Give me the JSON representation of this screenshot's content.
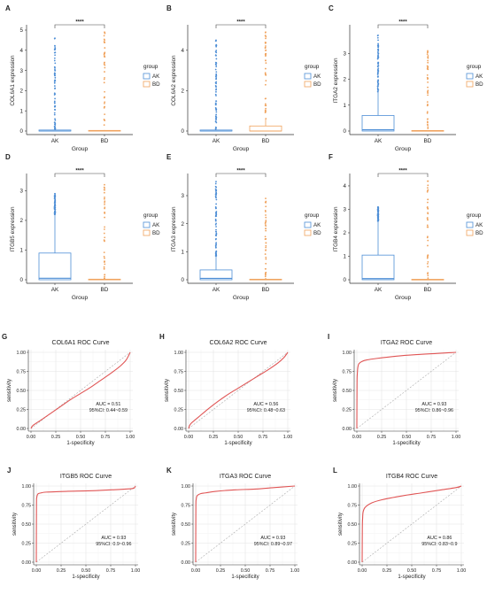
{
  "chart_data": [
    {
      "type": "box",
      "panel": "A",
      "ylabel": "COL6A1 expression",
      "xlabel": "Group",
      "categories": [
        "AK",
        "BD"
      ],
      "ylim": [
        0,
        5
      ],
      "yticks": [
        0,
        1,
        2,
        3,
        4,
        5
      ],
      "significance": "****",
      "legend": {
        "title": "group",
        "entries": [
          "AK",
          "BD"
        ],
        "placement": "right"
      },
      "series": [
        {
          "name": "AK",
          "color": "#4f8fd6",
          "q1": 0,
          "median": 0,
          "q3": 0.05,
          "whisker_low": 0,
          "whisker_high": 0.1,
          "outlier_max": 4.6
        },
        {
          "name": "BD",
          "color": "#f0a35e",
          "q1": 0,
          "median": 0,
          "q3": 0.03,
          "whisker_low": 0,
          "whisker_high": 0.05,
          "outlier_max": 4.9
        }
      ]
    },
    {
      "type": "box",
      "panel": "B",
      "ylabel": "COL6A2 expression",
      "xlabel": "Group",
      "categories": [
        "AK",
        "BD"
      ],
      "ylim": [
        0,
        5
      ],
      "yticks": [
        0,
        2,
        4
      ],
      "significance": "****",
      "legend": {
        "title": "group",
        "entries": [
          "AK",
          "BD"
        ],
        "placement": "right"
      },
      "series": [
        {
          "name": "AK",
          "color": "#4f8fd6",
          "q1": 0,
          "median": 0,
          "q3": 0.05,
          "whisker_low": 0,
          "whisker_high": 0.1,
          "outlier_max": 4.5
        },
        {
          "name": "BD",
          "color": "#f0a35e",
          "q1": 0,
          "median": 0,
          "q3": 0.25,
          "whisker_low": 0,
          "whisker_high": 0.6,
          "outlier_max": 4.9
        }
      ]
    },
    {
      "type": "box",
      "panel": "C",
      "ylabel": "ITGA2 expression",
      "xlabel": "Group",
      "categories": [
        "AK",
        "BD"
      ],
      "ylim": [
        0,
        3.9
      ],
      "yticks": [
        0,
        1,
        2,
        3
      ],
      "significance": "****",
      "legend": {
        "title": "group",
        "entries": [
          "AK",
          "BD"
        ],
        "placement": "right"
      },
      "series": [
        {
          "name": "AK",
          "color": "#4f8fd6",
          "q1": 0,
          "median": 0.05,
          "q3": 0.6,
          "whisker_low": 0,
          "whisker_high": 1.5,
          "outlier_max": 3.7
        },
        {
          "name": "BD",
          "color": "#f0a35e",
          "q1": 0,
          "median": 0,
          "q3": 0.02,
          "whisker_low": 0,
          "whisker_high": 0.03,
          "outlier_max": 3.1
        }
      ]
    },
    {
      "type": "box",
      "panel": "D",
      "ylabel": "ITGB5 expression",
      "xlabel": "Group",
      "categories": [
        "AK",
        "BD"
      ],
      "ylim": [
        0,
        3.4
      ],
      "yticks": [
        0,
        1,
        2,
        3
      ],
      "significance": "****",
      "legend": {
        "title": "group",
        "entries": [
          "AK",
          "BD"
        ],
        "placement": "right"
      },
      "series": [
        {
          "name": "AK",
          "color": "#4f8fd6",
          "q1": 0,
          "median": 0.05,
          "q3": 0.9,
          "whisker_low": 0,
          "whisker_high": 2.2,
          "outlier_max": 2.9
        },
        {
          "name": "BD",
          "color": "#f0a35e",
          "q1": 0,
          "median": 0,
          "q3": 0.02,
          "whisker_low": 0,
          "whisker_high": 0.03,
          "outlier_max": 3.2
        }
      ]
    },
    {
      "type": "box",
      "panel": "E",
      "ylabel": "ITGA3 expression",
      "xlabel": "Group",
      "categories": [
        "AK",
        "BD"
      ],
      "ylim": [
        0,
        3.6
      ],
      "yticks": [
        0,
        1,
        2,
        3
      ],
      "significance": "****",
      "legend": {
        "title": "group",
        "entries": [
          "AK",
          "BD"
        ],
        "placement": "right"
      },
      "series": [
        {
          "name": "AK",
          "color": "#4f8fd6",
          "q1": 0,
          "median": 0.05,
          "q3": 0.35,
          "whisker_low": 0,
          "whisker_high": 0.85,
          "outlier_max": 3.5
        },
        {
          "name": "BD",
          "color": "#f0a35e",
          "q1": 0,
          "median": 0,
          "q3": 0.02,
          "whisker_low": 0,
          "whisker_high": 0.03,
          "outlier_max": 2.9
        }
      ]
    },
    {
      "type": "box",
      "panel": "F",
      "ylabel": "ITGB4 expression",
      "xlabel": "Group",
      "categories": [
        "AK",
        "BD"
      ],
      "ylim": [
        0,
        4.3
      ],
      "yticks": [
        0,
        1,
        2,
        3,
        4
      ],
      "significance": "****",
      "legend": {
        "title": "group",
        "entries": [
          "AK",
          "BD"
        ],
        "placement": "right"
      },
      "series": [
        {
          "name": "AK",
          "color": "#4f8fd6",
          "q1": 0,
          "median": 0.05,
          "q3": 1.05,
          "whisker_low": 0,
          "whisker_high": 2.5,
          "outlier_max": 3.1
        },
        {
          "name": "BD",
          "color": "#f0a35e",
          "q1": 0,
          "median": 0,
          "q3": 0.02,
          "whisker_low": 0,
          "whisker_high": 0.03,
          "outlier_max": 4.2
        }
      ]
    },
    {
      "type": "line",
      "panel": "G",
      "title": "COL6A1 ROC Curve",
      "xlabel": "1-specificity",
      "ylabel": "sensitivity",
      "xlim": [
        0,
        1
      ],
      "ylim": [
        0,
        1
      ],
      "ticks": [
        0.0,
        0.25,
        0.5,
        0.75,
        1.0
      ],
      "auc_label": "AUC = 0.51",
      "ci_label": "95%CI: 0.44~0.59",
      "curve_color": "#e05555",
      "x": [
        0,
        0.02,
        0.1,
        0.2,
        0.3,
        0.4,
        0.5,
        0.6,
        0.7,
        0.8,
        0.9,
        0.96,
        1
      ],
      "y": [
        0,
        0.04,
        0.11,
        0.2,
        0.29,
        0.38,
        0.46,
        0.54,
        0.63,
        0.72,
        0.82,
        0.9,
        1
      ]
    },
    {
      "type": "line",
      "panel": "H",
      "title": "COL6A2 ROC Curve",
      "xlabel": "1-specificity",
      "ylabel": "sensitivity",
      "xlim": [
        0,
        1
      ],
      "ylim": [
        0,
        1
      ],
      "ticks": [
        0.0,
        0.25,
        0.5,
        0.75,
        1.0
      ],
      "auc_label": "AUC = 0.56",
      "ci_label": "95%CI: 0.48~0.63",
      "curve_color": "#e05555",
      "x": [
        0,
        0.02,
        0.1,
        0.2,
        0.3,
        0.4,
        0.5,
        0.6,
        0.7,
        0.8,
        0.9,
        0.96,
        1
      ],
      "y": [
        0,
        0.06,
        0.15,
        0.26,
        0.36,
        0.45,
        0.53,
        0.61,
        0.69,
        0.77,
        0.86,
        0.93,
        1
      ]
    },
    {
      "type": "line",
      "panel": "I",
      "title": "ITGA2 ROC Curve",
      "xlabel": "1-specificity",
      "ylabel": "sensitivity",
      "xlim": [
        0,
        1
      ],
      "ylim": [
        0,
        1
      ],
      "ticks": [
        0.0,
        0.25,
        0.5,
        0.75,
        1.0
      ],
      "auc_label": "AUC = 0.93",
      "ci_label": "95%CI: 0.86~0.96",
      "curve_color": "#e05555",
      "x": [
        0,
        0.002,
        0.005,
        0.01,
        0.02,
        0.05,
        0.1,
        0.2,
        0.4,
        0.6,
        0.8,
        1
      ],
      "y": [
        0,
        0.6,
        0.72,
        0.8,
        0.85,
        0.88,
        0.9,
        0.92,
        0.95,
        0.97,
        0.985,
        1
      ]
    },
    {
      "type": "line",
      "panel": "J",
      "title": "ITGB5 ROC Curve",
      "xlabel": "1-specificity",
      "ylabel": "sensitivity",
      "xlim": [
        0,
        1
      ],
      "ylim": [
        0,
        1
      ],
      "ticks": [
        0.0,
        0.25,
        0.5,
        0.75,
        1.0
      ],
      "auc_label": "AUC = 0.93",
      "ci_label": "95%CI: 0.9~0.96",
      "curve_color": "#e05555",
      "x": [
        0,
        0.002,
        0.005,
        0.01,
        0.02,
        0.05,
        0.1,
        0.3,
        0.6,
        0.9,
        0.98,
        1
      ],
      "y": [
        0,
        0.75,
        0.85,
        0.88,
        0.9,
        0.91,
        0.92,
        0.93,
        0.94,
        0.96,
        0.97,
        1
      ]
    },
    {
      "type": "line",
      "panel": "K",
      "title": "ITGA3 ROC Curve",
      "xlabel": "1-specificity",
      "ylabel": "sensitivity",
      "xlim": [
        0,
        1
      ],
      "ylim": [
        0,
        1
      ],
      "ticks": [
        0.0,
        0.25,
        0.5,
        0.75,
        1.0
      ],
      "auc_label": "AUC = 0.93",
      "ci_label": "95%CI: 0.89~0.97",
      "curve_color": "#e05555",
      "x": [
        0,
        0.002,
        0.005,
        0.01,
        0.02,
        0.05,
        0.1,
        0.2,
        0.4,
        0.6,
        0.8,
        1
      ],
      "y": [
        0,
        0.72,
        0.82,
        0.86,
        0.88,
        0.9,
        0.91,
        0.93,
        0.95,
        0.96,
        0.98,
        1
      ]
    },
    {
      "type": "line",
      "panel": "L",
      "title": "ITGB4 ROC Curve",
      "xlabel": "1-specificity",
      "ylabel": "sensitivity",
      "xlim": [
        0,
        1
      ],
      "ylim": [
        0,
        1
      ],
      "ticks": [
        0.0,
        0.25,
        0.5,
        0.75,
        1.0
      ],
      "auc_label": "AUC = 0.86",
      "ci_label": "95%CI: 0.83~0.9",
      "curve_color": "#e05555",
      "x": [
        0,
        0.002,
        0.005,
        0.01,
        0.03,
        0.1,
        0.2,
        0.4,
        0.6,
        0.8,
        0.95,
        1
      ],
      "y": [
        0,
        0.45,
        0.58,
        0.66,
        0.72,
        0.78,
        0.82,
        0.87,
        0.91,
        0.95,
        0.98,
        1
      ]
    }
  ]
}
